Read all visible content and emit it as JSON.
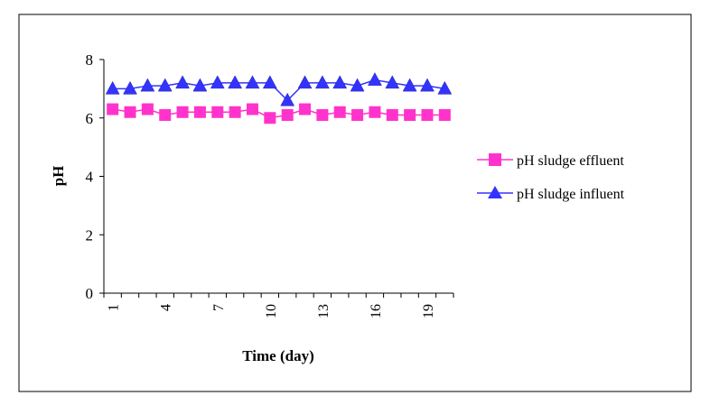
{
  "chart_data": {
    "type": "line",
    "title": "",
    "xlabel": "Time (day)",
    "ylabel": "pH",
    "x": [
      1,
      2,
      3,
      4,
      5,
      6,
      7,
      8,
      9,
      10,
      11,
      12,
      13,
      14,
      15,
      16,
      17,
      18,
      19,
      20
    ],
    "x_tick_labels": [
      "1",
      "4",
      "7",
      "10",
      "13",
      "16",
      "19"
    ],
    "x_tick_values": [
      1,
      4,
      7,
      10,
      13,
      16,
      19
    ],
    "ylim": [
      0,
      8
    ],
    "y_ticks": [
      0,
      2,
      4,
      6,
      8
    ],
    "grid": false,
    "legend_position": "right",
    "series": [
      {
        "name": "pH sludge effluent",
        "marker": "square",
        "color": "#ff33cc",
        "values": [
          6.3,
          6.2,
          6.3,
          6.1,
          6.2,
          6.2,
          6.2,
          6.2,
          6.3,
          6.0,
          6.1,
          6.3,
          6.1,
          6.2,
          6.1,
          6.2,
          6.1,
          6.1,
          6.1,
          6.1
        ]
      },
      {
        "name": "pH sludge influent",
        "marker": "triangle",
        "color": "#3333ff",
        "values": [
          7.0,
          7.0,
          7.1,
          7.1,
          7.2,
          7.1,
          7.2,
          7.2,
          7.2,
          7.2,
          6.6,
          7.2,
          7.2,
          7.2,
          7.1,
          7.3,
          7.2,
          7.1,
          7.1,
          7.0
        ]
      }
    ]
  }
}
